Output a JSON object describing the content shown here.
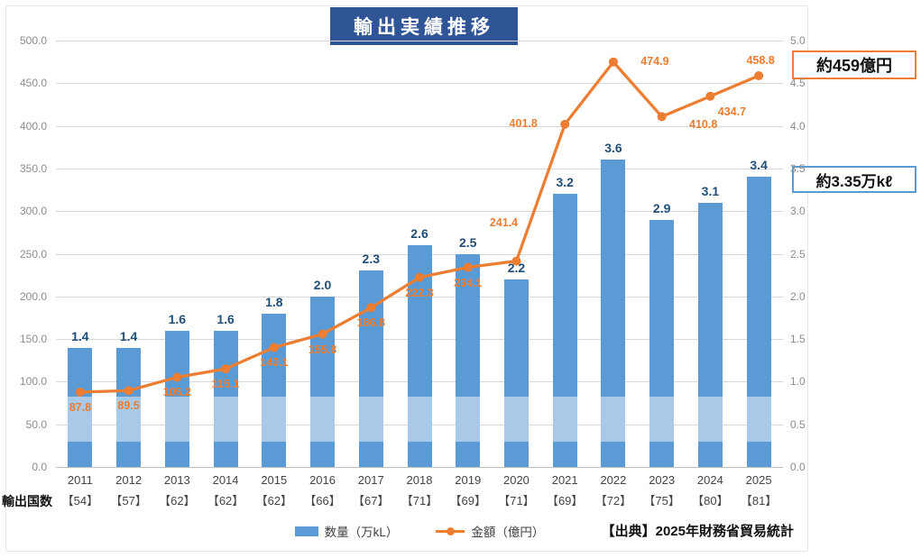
{
  "title": "輸出実績推移",
  "callouts": {
    "amount": "約459億円",
    "quantity": "約3.35万kℓ"
  },
  "bottom_left_label": "輸出国数",
  "legend": {
    "bars": "数量（万kL）",
    "line": "金額（億円）"
  },
  "source": "【出典】2025年財務省貿易統計",
  "colors": {
    "bar": "#5B9BD5",
    "bar_light": "#A9C9E9",
    "line": "#ED7D31",
    "title_bg": "#2F5597",
    "bar_label": "#1F4E79",
    "axis_text": "#8C8C8C",
    "grid": "#D9D9D9"
  },
  "chart_data": {
    "type": "bar",
    "subtype": "bar+line combo, dual axis",
    "title": "輸出実績推移",
    "categories": [
      "2011",
      "2012",
      "2013",
      "2014",
      "2015",
      "2016",
      "2017",
      "2018",
      "2019",
      "2020",
      "2021",
      "2022",
      "2023",
      "2024",
      "2025"
    ],
    "category_sub_labels": [
      "【54】",
      "【57】",
      "【62】",
      "【62】",
      "【62】",
      "【66】",
      "【67】",
      "【71】",
      "【69】",
      "【71】",
      "【69】",
      "【72】",
      "【75】",
      "【80】",
      "【81】"
    ],
    "series": [
      {
        "name": "数量（万kL）",
        "type": "bar",
        "axis": "right",
        "values": [
          1.4,
          1.4,
          1.6,
          1.6,
          1.8,
          2.0,
          2.3,
          2.6,
          2.5,
          2.2,
          3.2,
          3.6,
          2.9,
          3.1,
          3.4
        ]
      },
      {
        "name": "金額（億円）",
        "type": "line",
        "axis": "left",
        "values": [
          87.8,
          89.5,
          105.2,
          115.1,
          140.1,
          155.8,
          186.8,
          222.3,
          234.1,
          241.4,
          401.8,
          474.9,
          410.8,
          434.7,
          458.8
        ],
        "label_placement": [
          "below",
          "below",
          "below",
          "below",
          "below",
          "below",
          "below",
          "below",
          "below",
          "above-far",
          "left",
          "right",
          "below-right-far",
          "below-right",
          "above"
        ]
      }
    ],
    "y_left": {
      "min": 0,
      "max": 500,
      "step": 50,
      "tick_labels": [
        "0.0",
        "50.0",
        "100.0",
        "150.0",
        "200.0",
        "250.0",
        "300.0",
        "350.0",
        "400.0",
        "450.0",
        "500.0"
      ]
    },
    "y_right": {
      "min": 0,
      "max": 5,
      "step": 0.5,
      "tick_labels": [
        "0.0",
        "0.5",
        "1.0",
        "1.5",
        "2.0",
        "2.5",
        "3.0",
        "3.5",
        "4.0",
        "4.5",
        "5.0"
      ]
    },
    "grid": true,
    "legend_position": "bottom"
  }
}
